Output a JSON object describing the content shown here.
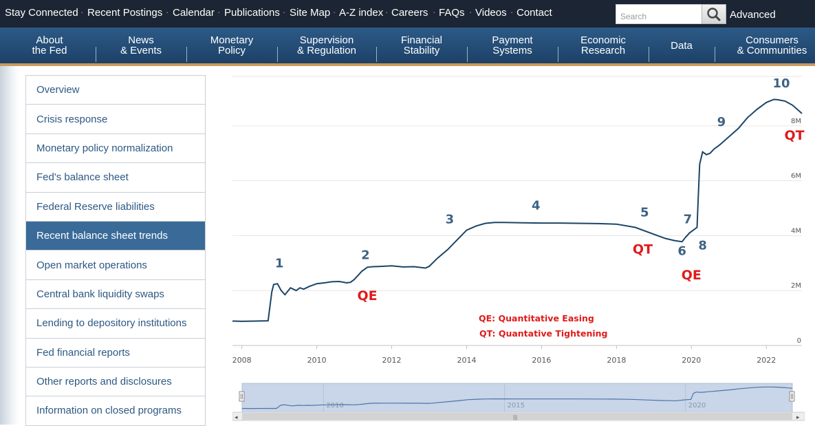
{
  "topbar": {
    "links": [
      "Stay Connected",
      "Recent Postings",
      "Calendar",
      "Publications",
      "Site Map",
      "A-Z index",
      "Careers",
      "FAQs",
      "Videos",
      "Contact"
    ],
    "search_placeholder": "Search",
    "advanced_label": "Advanced"
  },
  "nav": {
    "items": [
      {
        "line1": "About",
        "line2": "the Fed"
      },
      {
        "line1": "News",
        "line2": "& Events"
      },
      {
        "line1": "Monetary",
        "line2": "Policy"
      },
      {
        "line1": "Supervision",
        "line2": "& Regulation"
      },
      {
        "line1": "Financial",
        "line2": "Stability"
      },
      {
        "line1": "Payment",
        "line2": "Systems"
      },
      {
        "line1": "Economic",
        "line2": "Research"
      },
      {
        "line1": "Data",
        "line2": ""
      },
      {
        "line1": "Consumers",
        "line2": "& Communities"
      }
    ]
  },
  "sidemenu": {
    "items": [
      "Overview",
      "Crisis response",
      "Monetary policy normalization",
      "Fed's balance sheet",
      "Federal Reserve liabilities",
      "Recent balance sheet trends",
      "Open market operations",
      "Central bank liquidity swaps",
      "Lending to depository institutions",
      "Fed financial reports",
      "Other reports and disclosures",
      "Information on closed programs"
    ],
    "active_index": 5
  },
  "colors": {
    "topbar": "#1b2533",
    "nav": "#1d4168",
    "nav_accent": "#c79b5d",
    "series_line": "#1a4467",
    "annotation_number": "#3d6384",
    "annotation_red": "#e01b1b",
    "side_active": "#3a6b98",
    "side_link": "#2d5883"
  },
  "chart_data": {
    "type": "line",
    "title": "",
    "xlabel": "",
    "ylabel": "",
    "x_ticks": [
      "2008",
      "2010",
      "2012",
      "2014",
      "2016",
      "2018",
      "2020",
      "2022"
    ],
    "y_ticks": [
      "0",
      "2M",
      "4M",
      "6M",
      "8M"
    ],
    "xlim": [
      2007.75,
      2022.95
    ],
    "ylim": [
      0,
      9.8
    ],
    "y_unit_note": "values in millions (M) as labeled on axis",
    "series": [
      {
        "name": "",
        "x": [
          2007.75,
          2008.0,
          2008.4,
          2008.7,
          2008.8,
          2008.85,
          2008.95,
          2009.05,
          2009.15,
          2009.3,
          2009.45,
          2009.55,
          2009.65,
          2009.8,
          2010.0,
          2010.2,
          2010.4,
          2010.6,
          2010.8,
          2010.9,
          2011.0,
          2011.1,
          2011.2,
          2011.35,
          2011.5,
          2011.7,
          2012.0,
          2012.3,
          2012.6,
          2012.9,
          2013.0,
          2013.2,
          2013.5,
          2013.75,
          2014.0,
          2014.25,
          2014.5,
          2014.75,
          2015.0,
          2015.5,
          2016.0,
          2016.5,
          2017.0,
          2017.5,
          2018.0,
          2018.5,
          2019.0,
          2019.3,
          2019.55,
          2019.75,
          2019.85,
          2019.95,
          2020.05,
          2020.15,
          2020.18,
          2020.22,
          2020.3,
          2020.4,
          2020.5,
          2020.6,
          2020.75,
          2021.0,
          2021.25,
          2021.5,
          2021.75,
          2022.0,
          2022.2,
          2022.3,
          2022.5,
          2022.7,
          2022.95
        ],
        "values": [
          0.89,
          0.88,
          0.89,
          0.9,
          1.95,
          2.22,
          2.25,
          2.0,
          1.85,
          2.1,
          2.0,
          2.1,
          2.05,
          2.15,
          2.25,
          2.28,
          2.32,
          2.33,
          2.28,
          2.3,
          2.4,
          2.55,
          2.7,
          2.85,
          2.87,
          2.88,
          2.9,
          2.86,
          2.87,
          2.82,
          2.88,
          3.15,
          3.5,
          3.85,
          4.2,
          4.35,
          4.45,
          4.48,
          4.48,
          4.47,
          4.46,
          4.46,
          4.45,
          4.44,
          4.42,
          4.3,
          4.05,
          3.9,
          3.82,
          3.78,
          3.95,
          4.1,
          4.2,
          4.3,
          5.3,
          6.6,
          7.05,
          6.95,
          7.0,
          7.15,
          7.3,
          7.6,
          7.9,
          8.3,
          8.6,
          8.85,
          8.96,
          8.95,
          8.9,
          8.75,
          8.45
        ]
      }
    ],
    "annotations": [
      {
        "text": "1",
        "x": 2009.0,
        "y": 2.85,
        "kind": "number"
      },
      {
        "text": "2",
        "x": 2011.3,
        "y": 3.15,
        "kind": "number"
      },
      {
        "text": "3",
        "x": 2013.55,
        "y": 4.45,
        "kind": "number"
      },
      {
        "text": "4",
        "x": 2015.85,
        "y": 4.95,
        "kind": "number"
      },
      {
        "text": "5",
        "x": 2018.75,
        "y": 4.7,
        "kind": "number"
      },
      {
        "text": "6",
        "x": 2019.75,
        "y": 3.3,
        "kind": "number"
      },
      {
        "text": "7",
        "x": 2019.9,
        "y": 4.45,
        "kind": "number"
      },
      {
        "text": "8",
        "x": 2020.3,
        "y": 3.5,
        "kind": "number"
      },
      {
        "text": "9",
        "x": 2020.8,
        "y": 8.0,
        "kind": "number"
      },
      {
        "text": "10",
        "x": 2022.4,
        "y": 9.4,
        "kind": "number"
      },
      {
        "text": "QE",
        "x": 2011.35,
        "y": 1.65,
        "kind": "red"
      },
      {
        "text": "QT",
        "x": 2018.7,
        "y": 3.35,
        "kind": "red"
      },
      {
        "text": "QE",
        "x": 2020.0,
        "y": 2.4,
        "kind": "red"
      },
      {
        "text": "QT",
        "x": 2022.75,
        "y": 7.5,
        "kind": "red"
      }
    ],
    "legend_notes": [
      "QE: Quantitative Easing",
      "QT: Quantative Tightening"
    ],
    "navigator_ticks": [
      "2010",
      "2015",
      "2020"
    ],
    "grid": true
  }
}
